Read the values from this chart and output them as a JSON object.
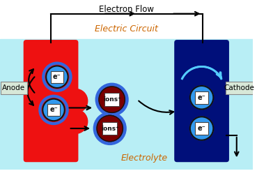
{
  "bg_color": "#ffffff",
  "electrolyte_color": "#b8eef5",
  "anode_color": "#ee1111",
  "cathode_color": "#000f7a",
  "ion_bg_color": "#7a0000",
  "ion_ring_color": "#3366dd",
  "electron_circle_color": "#3399ee",
  "title_electron_flow": "Electron Flow",
  "title_electric_circuit": "Electric Circuit",
  "title_electrolyte": "Electrolyte",
  "label_anode": "Anode",
  "label_cathode": "Cathode",
  "label_ions": "ions⁺",
  "label_e": "e⁻",
  "figsize": [
    3.69,
    2.45
  ],
  "dpi": 100
}
